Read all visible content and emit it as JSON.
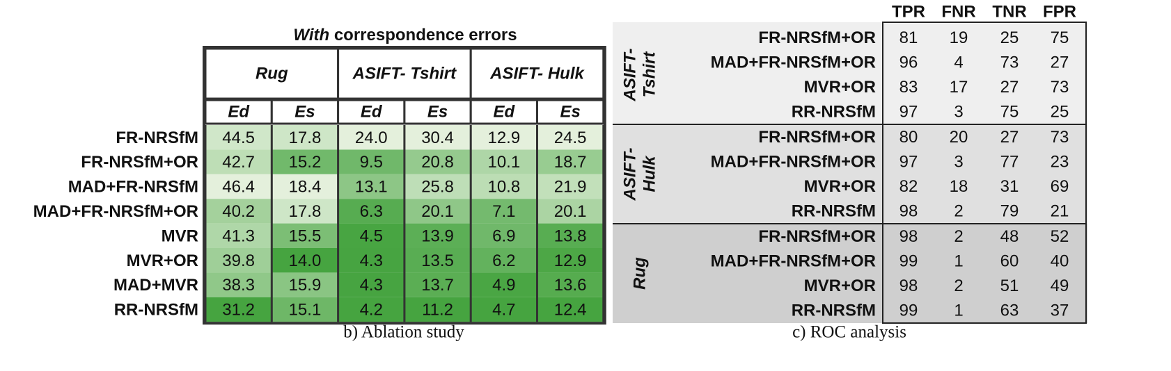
{
  "ablation": {
    "title_emph": "With",
    "title": "correspondence errors",
    "groups": [
      "Rug",
      "ASIFT- Tshirt",
      "ASIFT- Hulk"
    ],
    "subheaders": [
      "Ed",
      "Es",
      "Ed",
      "Es",
      "Ed",
      "Es"
    ],
    "rows": [
      {
        "label": "FR-NRSfM",
        "cells": [
          "44.5",
          "17.8",
          "24.0",
          "30.4",
          "12.9",
          "24.5"
        ]
      },
      {
        "label": "FR-NRSfM+OR",
        "cells": [
          "42.7",
          "15.2",
          "9.5",
          "20.8",
          "10.1",
          "18.7"
        ]
      },
      {
        "label": "MAD+FR-NRSfM",
        "cells": [
          "46.4",
          "18.4",
          "13.1",
          "25.8",
          "10.8",
          "21.9"
        ]
      },
      {
        "label": "MAD+FR-NRSfM+OR",
        "cells": [
          "40.2",
          "17.8",
          "6.3",
          "20.1",
          "7.1",
          "20.1"
        ]
      },
      {
        "label": "MVR",
        "cells": [
          "41.3",
          "15.5",
          "4.5",
          "13.9",
          "6.9",
          "13.8"
        ]
      },
      {
        "label": "MVR+OR",
        "cells": [
          "39.8",
          "14.0",
          "4.3",
          "13.5",
          "6.2",
          "12.9"
        ]
      },
      {
        "label": "MAD+MVR",
        "cells": [
          "38.3",
          "15.9",
          "4.3",
          "13.7",
          "4.9",
          "13.6"
        ]
      },
      {
        "label": "RR-NRSfM",
        "cells": [
          "31.2",
          "15.1",
          "4.2",
          "11.2",
          "4.7",
          "12.4"
        ]
      }
    ],
    "caption": "b) Ablation study"
  },
  "roc": {
    "headers": [
      "TPR",
      "FNR",
      "TNR",
      "FPR"
    ],
    "groups": [
      {
        "label_lines": [
          "ASIFT-",
          "Tshirt"
        ],
        "rows": [
          {
            "label": "FR-NRSfM+OR",
            "cells": [
              81,
              19,
              25,
              75
            ]
          },
          {
            "label": "MAD+FR-NRSfM+OR",
            "cells": [
              96,
              4,
              73,
              27
            ]
          },
          {
            "label": "MVR+OR",
            "cells": [
              83,
              17,
              27,
              73
            ]
          },
          {
            "label": "RR-NRSfM",
            "cells": [
              97,
              3,
              75,
              25
            ]
          }
        ]
      },
      {
        "label_lines": [
          "ASIFT-",
          "Hulk"
        ],
        "rows": [
          {
            "label": "FR-NRSfM+OR",
            "cells": [
              80,
              20,
              27,
              73
            ]
          },
          {
            "label": "MAD+FR-NRSfM+OR",
            "cells": [
              97,
              3,
              77,
              23
            ]
          },
          {
            "label": "MVR+OR",
            "cells": [
              82,
              18,
              31,
              69
            ]
          },
          {
            "label": "RR-NRSfM",
            "cells": [
              98,
              2,
              79,
              21
            ]
          }
        ]
      },
      {
        "label_lines": [
          "Rug"
        ],
        "rows": [
          {
            "label": "FR-NRSfM+OR",
            "cells": [
              98,
              2,
              48,
              52
            ]
          },
          {
            "label": "MAD+FR-NRSfM+OR",
            "cells": [
              99,
              1,
              60,
              40
            ]
          },
          {
            "label": "MVR+OR",
            "cells": [
              98,
              2,
              51,
              49
            ]
          },
          {
            "label": "RR-NRSfM",
            "cells": [
              99,
              1,
              63,
              37
            ]
          }
        ]
      }
    ],
    "caption": "c) ROC analysis"
  }
}
